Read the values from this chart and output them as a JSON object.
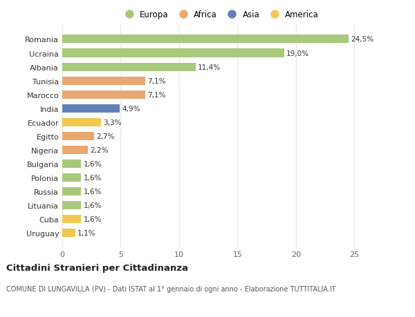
{
  "categories": [
    "Romania",
    "Ucraina",
    "Albania",
    "Tunisia",
    "Marocco",
    "India",
    "Ecuador",
    "Egitto",
    "Nigeria",
    "Bulgaria",
    "Polonia",
    "Russia",
    "Lituania",
    "Cuba",
    "Uruguay"
  ],
  "values": [
    24.5,
    19.0,
    11.4,
    7.1,
    7.1,
    4.9,
    3.3,
    2.7,
    2.2,
    1.6,
    1.6,
    1.6,
    1.6,
    1.6,
    1.1
  ],
  "labels": [
    "24,5%",
    "19,0%",
    "11,4%",
    "7,1%",
    "7,1%",
    "4,9%",
    "3,3%",
    "2,7%",
    "2,2%",
    "1,6%",
    "1,6%",
    "1,6%",
    "1,6%",
    "1,6%",
    "1,1%"
  ],
  "continent": [
    "Europa",
    "Europa",
    "Europa",
    "Africa",
    "Africa",
    "Asia",
    "America",
    "Africa",
    "Africa",
    "Europa",
    "Europa",
    "Europa",
    "Europa",
    "America",
    "America"
  ],
  "colors": {
    "Europa": "#a8c87a",
    "Africa": "#e8a870",
    "Asia": "#6080b8",
    "America": "#f0c850"
  },
  "legend_order": [
    "Europa",
    "Africa",
    "Asia",
    "America"
  ],
  "title": "Cittadini Stranieri per Cittadinanza",
  "subtitle": "COMUNE DI LUNGAVILLA (PV) - Dati ISTAT al 1° gennaio di ogni anno - Elaborazione TUTTITALIA.IT",
  "xlim": [
    0,
    27
  ],
  "xticks": [
    0,
    5,
    10,
    15,
    20,
    25
  ],
  "bg_color": "#ffffff",
  "grid_color": "#e8e8e8"
}
